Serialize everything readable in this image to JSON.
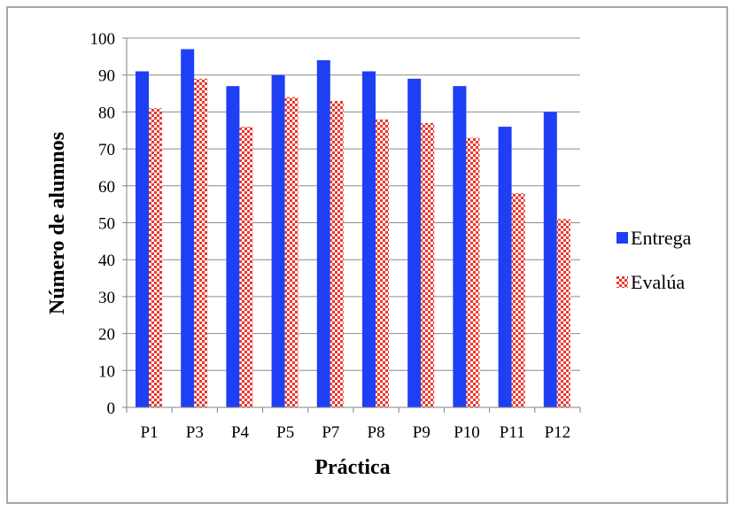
{
  "chart_data": {
    "type": "bar",
    "title": "",
    "xlabel": "Práctica",
    "ylabel": "Número de alumnos",
    "categories": [
      "P1",
      "P3",
      "P4",
      "P5",
      "P7",
      "P8",
      "P9",
      "P10",
      "P11",
      "P12"
    ],
    "ylim": [
      0,
      100
    ],
    "yticks": [
      "0",
      "10",
      "20",
      "30",
      "40",
      "50",
      "60",
      "70",
      "80",
      "90",
      "100"
    ],
    "grid": true,
    "legend_position": "right",
    "series": [
      {
        "name": "Entrega",
        "values": [
          91,
          97,
          87,
          90,
          94,
          91,
          89,
          87,
          76,
          80
        ],
        "color": "#1f3ff5",
        "pattern": "solid"
      },
      {
        "name": "Evalúa",
        "values": [
          81,
          89,
          76,
          84,
          83,
          78,
          77,
          73,
          58,
          51
        ],
        "color": "#e8392f",
        "pattern": "checkered"
      }
    ]
  },
  "colors": {
    "background": "#ffffff",
    "frame": "#8c8c8c",
    "grid": "#8c8c8c",
    "axis": "#808080"
  }
}
